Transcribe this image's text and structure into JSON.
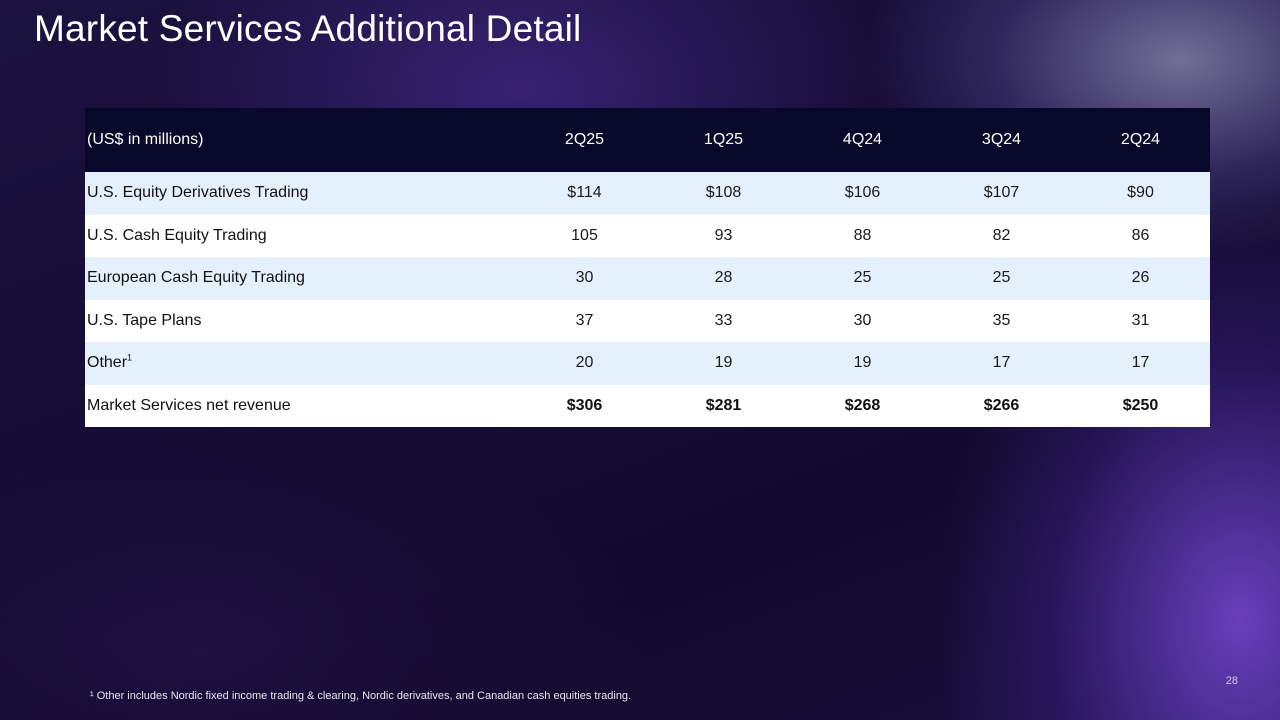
{
  "title": "Market Services Additional Detail",
  "table": {
    "header": [
      "(US$ in millions)",
      "2Q25",
      "1Q25",
      "4Q24",
      "3Q24",
      "2Q24"
    ],
    "rows": [
      {
        "label": "U.S. Equity Derivatives Trading",
        "sup": "",
        "values": [
          "$114",
          "$108",
          "$106",
          "$107",
          "$90"
        ]
      },
      {
        "label": "U.S. Cash Equity Trading",
        "sup": "",
        "values": [
          "105",
          "93",
          "88",
          "82",
          "86"
        ]
      },
      {
        "label": "European Cash Equity Trading",
        "sup": "",
        "values": [
          "30",
          "28",
          "25",
          "25",
          "26"
        ]
      },
      {
        "label": "U.S. Tape Plans",
        "sup": "",
        "values": [
          "37",
          "33",
          "30",
          "35",
          "31"
        ]
      },
      {
        "label": "Other",
        "sup": "1",
        "values": [
          "20",
          "19",
          "19",
          "17",
          "17"
        ]
      },
      {
        "label": "Market Services net revenue",
        "sup": "",
        "values": [
          "$306",
          "$281",
          "$268",
          "$266",
          "$250"
        ]
      }
    ]
  },
  "footnote": "¹ Other includes Nordic fixed income trading & clearing, Nordic derivatives, and Canadian cash equities trading.",
  "page_number": "28"
}
